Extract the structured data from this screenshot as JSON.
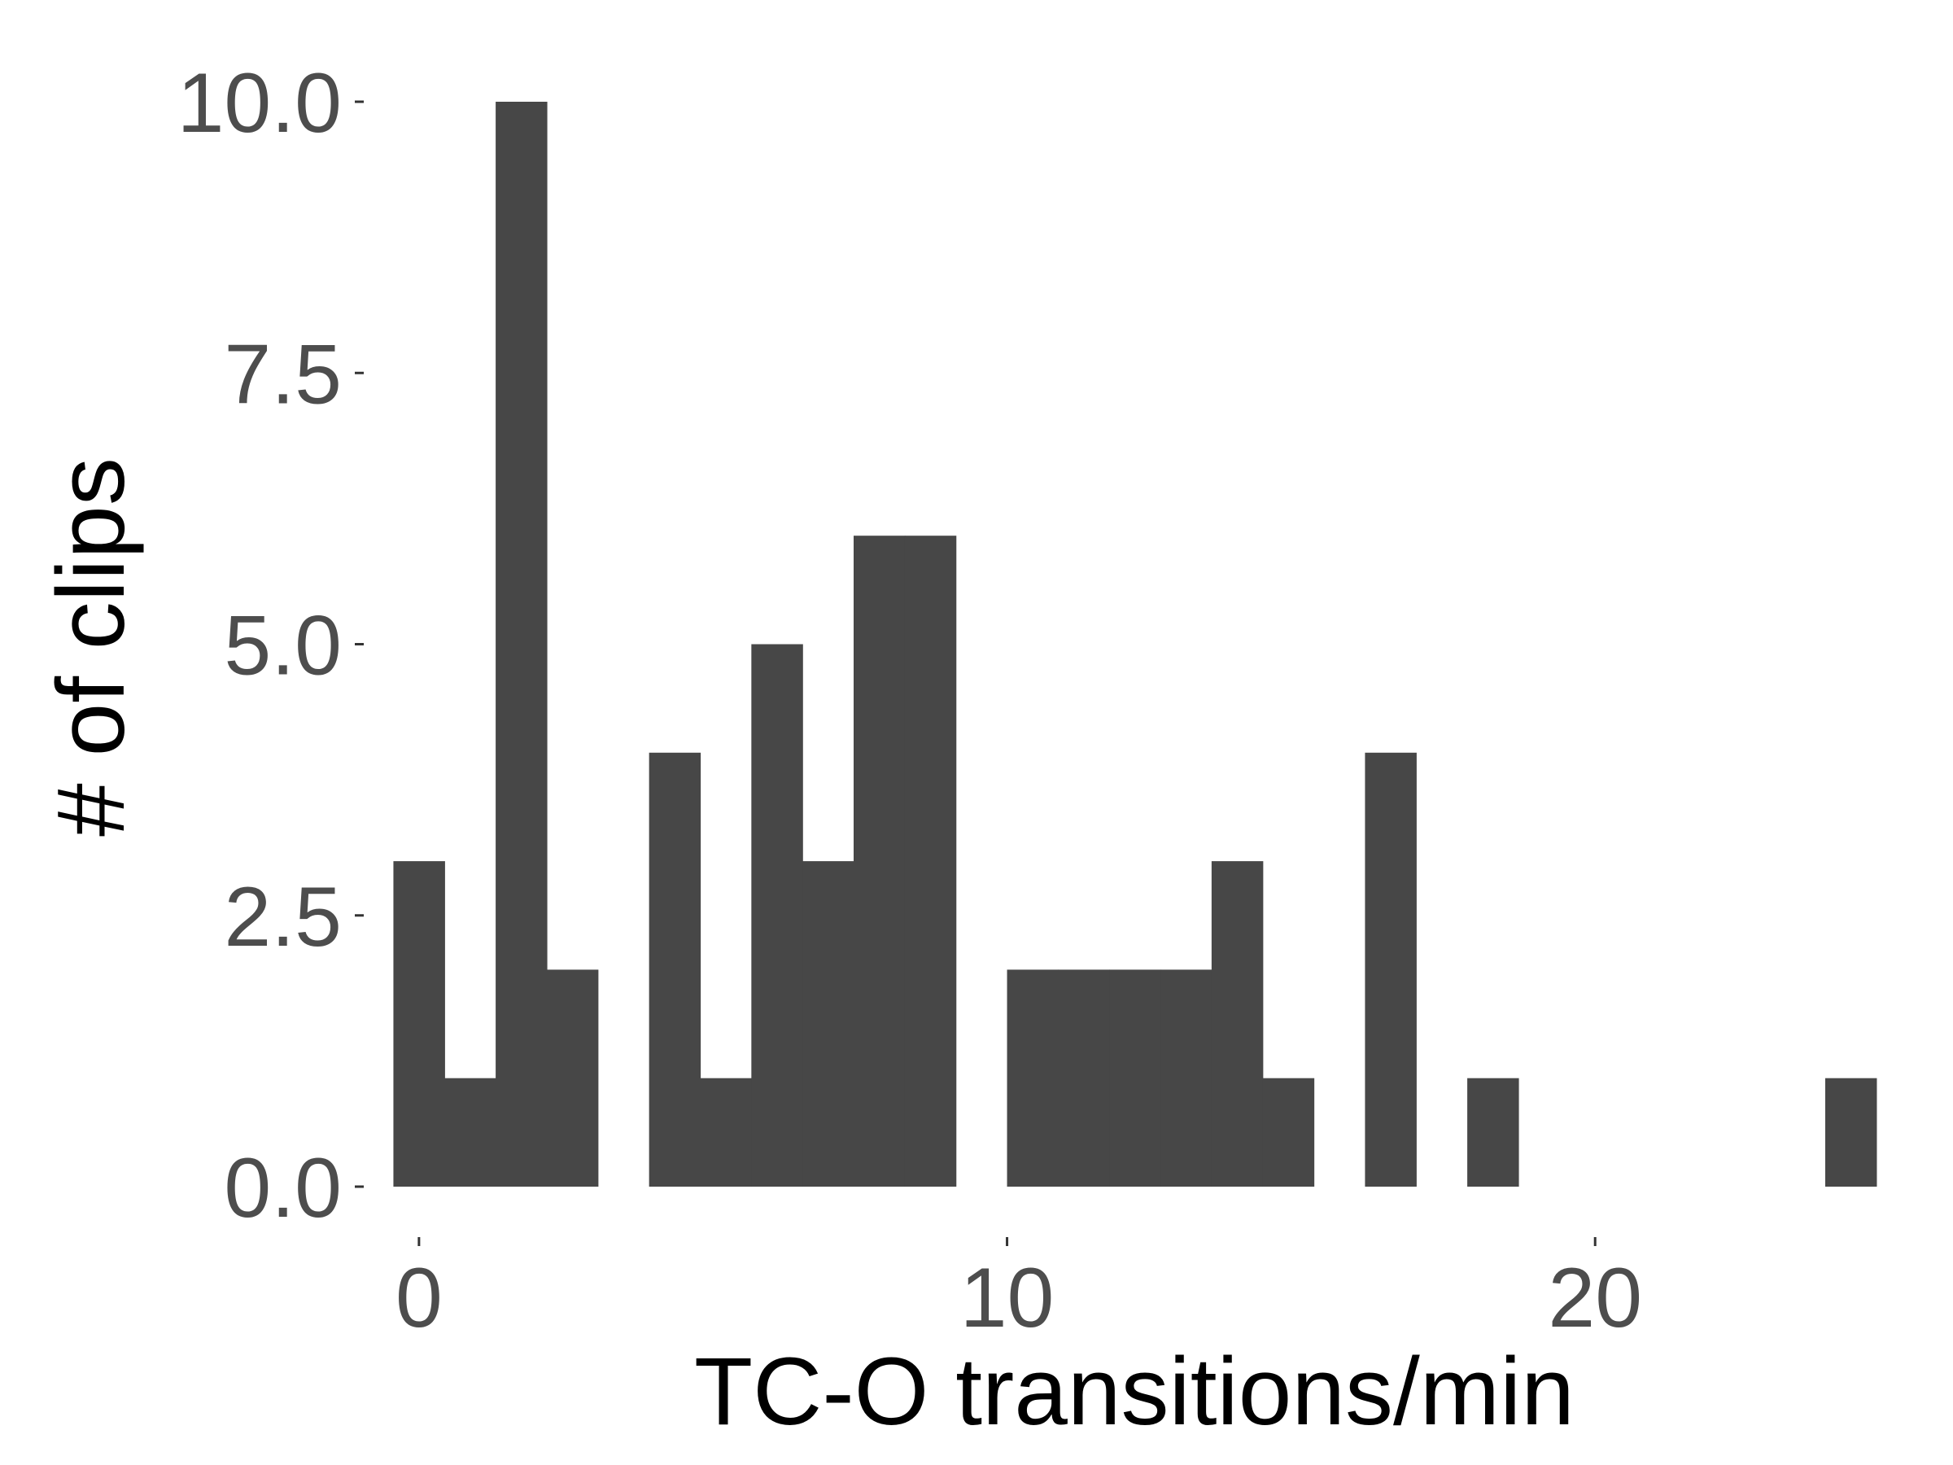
{
  "chart_data": {
    "type": "bar",
    "title": "",
    "xlabel": "TC-O transitions/min",
    "ylabel": "# of clips",
    "bin_width": 0.8696,
    "bins": [
      {
        "x0": -0.435,
        "x1": 0.435,
        "count": 3
      },
      {
        "x0": 0.435,
        "x1": 1.304,
        "count": 1
      },
      {
        "x0": 1.304,
        "x1": 2.174,
        "count": 10
      },
      {
        "x0": 2.174,
        "x1": 3.043,
        "count": 2
      },
      {
        "x0": 3.043,
        "x1": 3.913,
        "count": 0
      },
      {
        "x0": 3.913,
        "x1": 4.783,
        "count": 4
      },
      {
        "x0": 4.783,
        "x1": 5.652,
        "count": 1
      },
      {
        "x0": 5.652,
        "x1": 6.522,
        "count": 5
      },
      {
        "x0": 6.522,
        "x1": 7.391,
        "count": 3
      },
      {
        "x0": 7.391,
        "x1": 8.261,
        "count": 6
      },
      {
        "x0": 8.261,
        "x1": 9.13,
        "count": 6
      },
      {
        "x0": 9.13,
        "x1": 10.0,
        "count": 0
      },
      {
        "x0": 10.0,
        "x1": 10.87,
        "count": 2
      },
      {
        "x0": 10.87,
        "x1": 11.739,
        "count": 2
      },
      {
        "x0": 11.739,
        "x1": 12.609,
        "count": 2
      },
      {
        "x0": 12.609,
        "x1": 13.478,
        "count": 2
      },
      {
        "x0": 13.478,
        "x1": 14.348,
        "count": 3
      },
      {
        "x0": 14.348,
        "x1": 15.217,
        "count": 1
      },
      {
        "x0": 15.217,
        "x1": 16.087,
        "count": 0
      },
      {
        "x0": 16.087,
        "x1": 16.957,
        "count": 4
      },
      {
        "x0": 16.957,
        "x1": 17.826,
        "count": 0
      },
      {
        "x0": 17.826,
        "x1": 18.696,
        "count": 1
      },
      {
        "x0": 18.696,
        "x1": 19.565,
        "count": 0
      },
      {
        "x0": 19.565,
        "x1": 20.435,
        "count": 0
      },
      {
        "x0": 20.435,
        "x1": 21.304,
        "count": 0
      },
      {
        "x0": 21.304,
        "x1": 22.174,
        "count": 0
      },
      {
        "x0": 22.174,
        "x1": 23.043,
        "count": 0
      },
      {
        "x0": 23.043,
        "x1": 23.913,
        "count": 0
      },
      {
        "x0": 23.913,
        "x1": 24.783,
        "count": 1
      }
    ],
    "xlim": [
      -0.87,
      25.2
    ],
    "ylim": [
      0,
      10
    ],
    "x_ticks": [
      0,
      10,
      20
    ],
    "x_tick_labels": [
      "0",
      "10",
      "20"
    ],
    "y_ticks": [
      0,
      2.5,
      5,
      7.5,
      10
    ],
    "y_tick_labels": [
      "0.0",
      "2.5",
      "5.0",
      "7.5",
      "10.0"
    ],
    "grid": false,
    "legend": "none",
    "bar_color": "#474747",
    "tick_label_color": "#4d4d4d",
    "axis_title_color": "#000000"
  }
}
